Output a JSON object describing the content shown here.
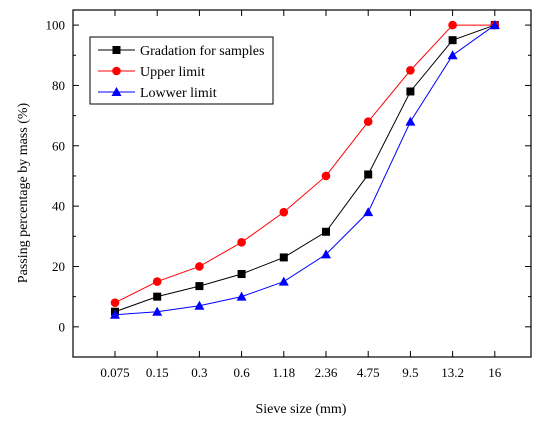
{
  "chart_data": {
    "type": "line",
    "title": "",
    "xlabel": "Sieve size (mm)",
    "ylabel": "Passing percentage by mass (%)",
    "ylim": [
      -10,
      105
    ],
    "yticks": [
      0,
      20,
      40,
      60,
      80,
      100
    ],
    "categories": [
      "0.075",
      "0.15",
      "0.3",
      "0.6",
      "1.18",
      "2.36",
      "4.75",
      "9.5",
      "13.2",
      "16"
    ],
    "legend_position": "top-left",
    "grid": false,
    "series": [
      {
        "name": "Gradation for samples",
        "color": "#000000",
        "marker": "square",
        "values": [
          5,
          10,
          13.5,
          17.5,
          23,
          31.5,
          50.5,
          78,
          95,
          100
        ]
      },
      {
        "name": "Upper limit",
        "color": "#ff0000",
        "marker": "circle",
        "values": [
          8,
          15,
          20,
          28,
          38,
          50,
          68,
          85,
          100,
          100
        ]
      },
      {
        "name": "Lowwer limit",
        "color": "#0000ff",
        "marker": "triangle",
        "values": [
          4,
          5,
          7,
          10,
          15,
          24,
          38,
          68,
          90,
          100
        ]
      }
    ]
  }
}
